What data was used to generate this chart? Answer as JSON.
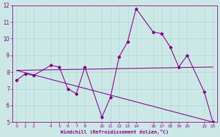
{
  "xlabel": "Windchill (Refroidissement éolien,°C)",
  "bg_color": "#cce8e6",
  "line_color": "#880088",
  "line1_x": [
    0,
    1,
    2,
    4,
    5,
    6,
    7,
    8,
    10,
    11,
    12,
    13,
    14,
    16,
    17,
    18,
    19,
    20,
    22,
    23
  ],
  "line1_y": [
    7.5,
    7.9,
    7.8,
    8.4,
    8.3,
    7.0,
    6.7,
    8.3,
    5.3,
    6.5,
    8.9,
    9.8,
    11.8,
    10.4,
    10.3,
    9.5,
    8.3,
    9.0,
    6.8,
    5.0
  ],
  "line2_x": [
    0,
    23
  ],
  "line2_y": [
    8.1,
    8.3
  ],
  "line3_x": [
    0,
    23
  ],
  "line3_y": [
    8.1,
    5.0
  ],
  "xlim": [
    -0.5,
    23.5
  ],
  "ylim": [
    5,
    12
  ],
  "yticks": [
    5,
    6,
    7,
    8,
    9,
    10,
    11,
    12
  ],
  "xtick_positions": [
    0,
    1,
    2,
    4,
    5,
    6,
    7,
    8,
    10,
    11,
    12,
    13,
    14,
    16,
    17,
    18,
    19,
    20,
    22,
    23
  ],
  "xtick_labels": [
    "0",
    "1",
    "2",
    "4",
    "5",
    "6",
    "7",
    "8",
    "10",
    "11",
    "12",
    "13",
    "14",
    "16",
    "17",
    "18",
    "19",
    "20",
    "22",
    "23"
  ],
  "grid_color": "#aad8d5",
  "marker": "D",
  "markersize": 2.0,
  "linewidth": 0.8
}
